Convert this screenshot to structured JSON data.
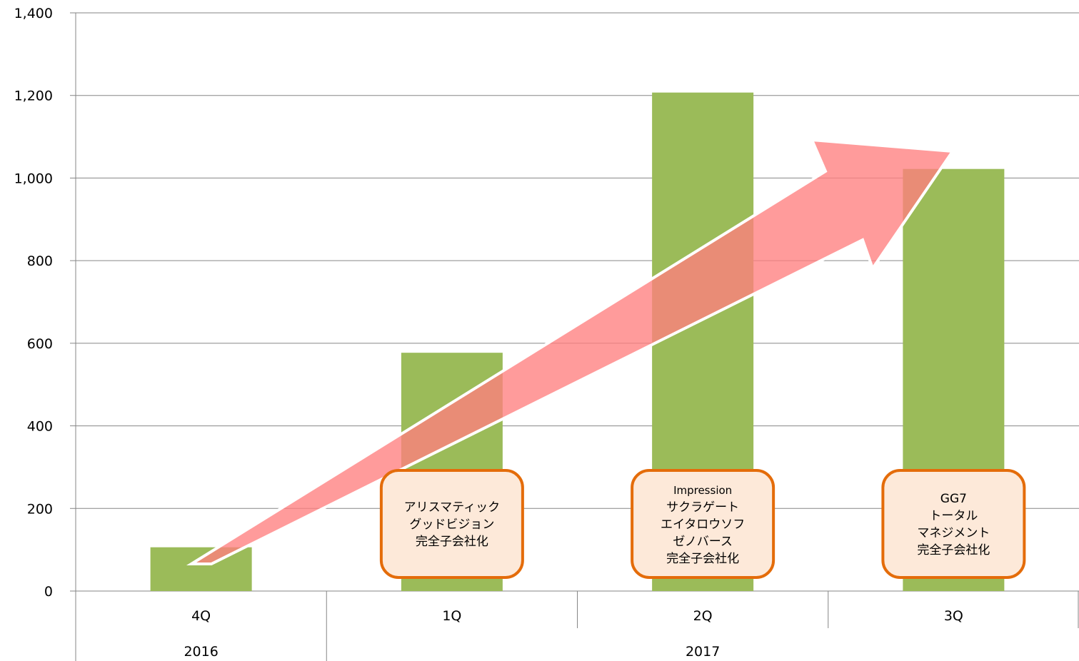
{
  "chart_data": {
    "type": "bar",
    "categories": [
      "4Q",
      "1Q",
      "2Q",
      "3Q"
    ],
    "year_groups": [
      {
        "label": "2016",
        "span": [
          0,
          0
        ]
      },
      {
        "label": "2017",
        "span": [
          1,
          3
        ]
      }
    ],
    "values": [
      106,
      577,
      1207,
      1022
    ],
    "ylim": [
      0,
      1400
    ],
    "yticks": [
      0,
      200,
      400,
      600,
      800,
      1000,
      1200,
      1400
    ],
    "ytick_labels": [
      "0",
      "200",
      "400",
      "600",
      "800",
      "1,000",
      "1,200",
      "1,400"
    ],
    "grid": true,
    "title": "",
    "xlabel": "",
    "ylabel": "",
    "bar_color": "#9BBB59",
    "annotations": [
      {
        "category": "1Q",
        "lines": [
          "アリスマティック",
          "グッドビジョン",
          "完全子会社化"
        ]
      },
      {
        "category": "2Q",
        "lines": [
          "Impression",
          "サクラゲート",
          "エイタロウソフ",
          "ゼノバース",
          "完全子会社化"
        ]
      },
      {
        "category": "3Q",
        "lines": [
          "GG7",
          "トータル",
          "マネジメント",
          "完全子会社化"
        ]
      }
    ],
    "callout_border_color": "#E46C0A",
    "callout_fill_color": "#FDE9D9",
    "trend_arrow_color": "#FF7F7F"
  }
}
